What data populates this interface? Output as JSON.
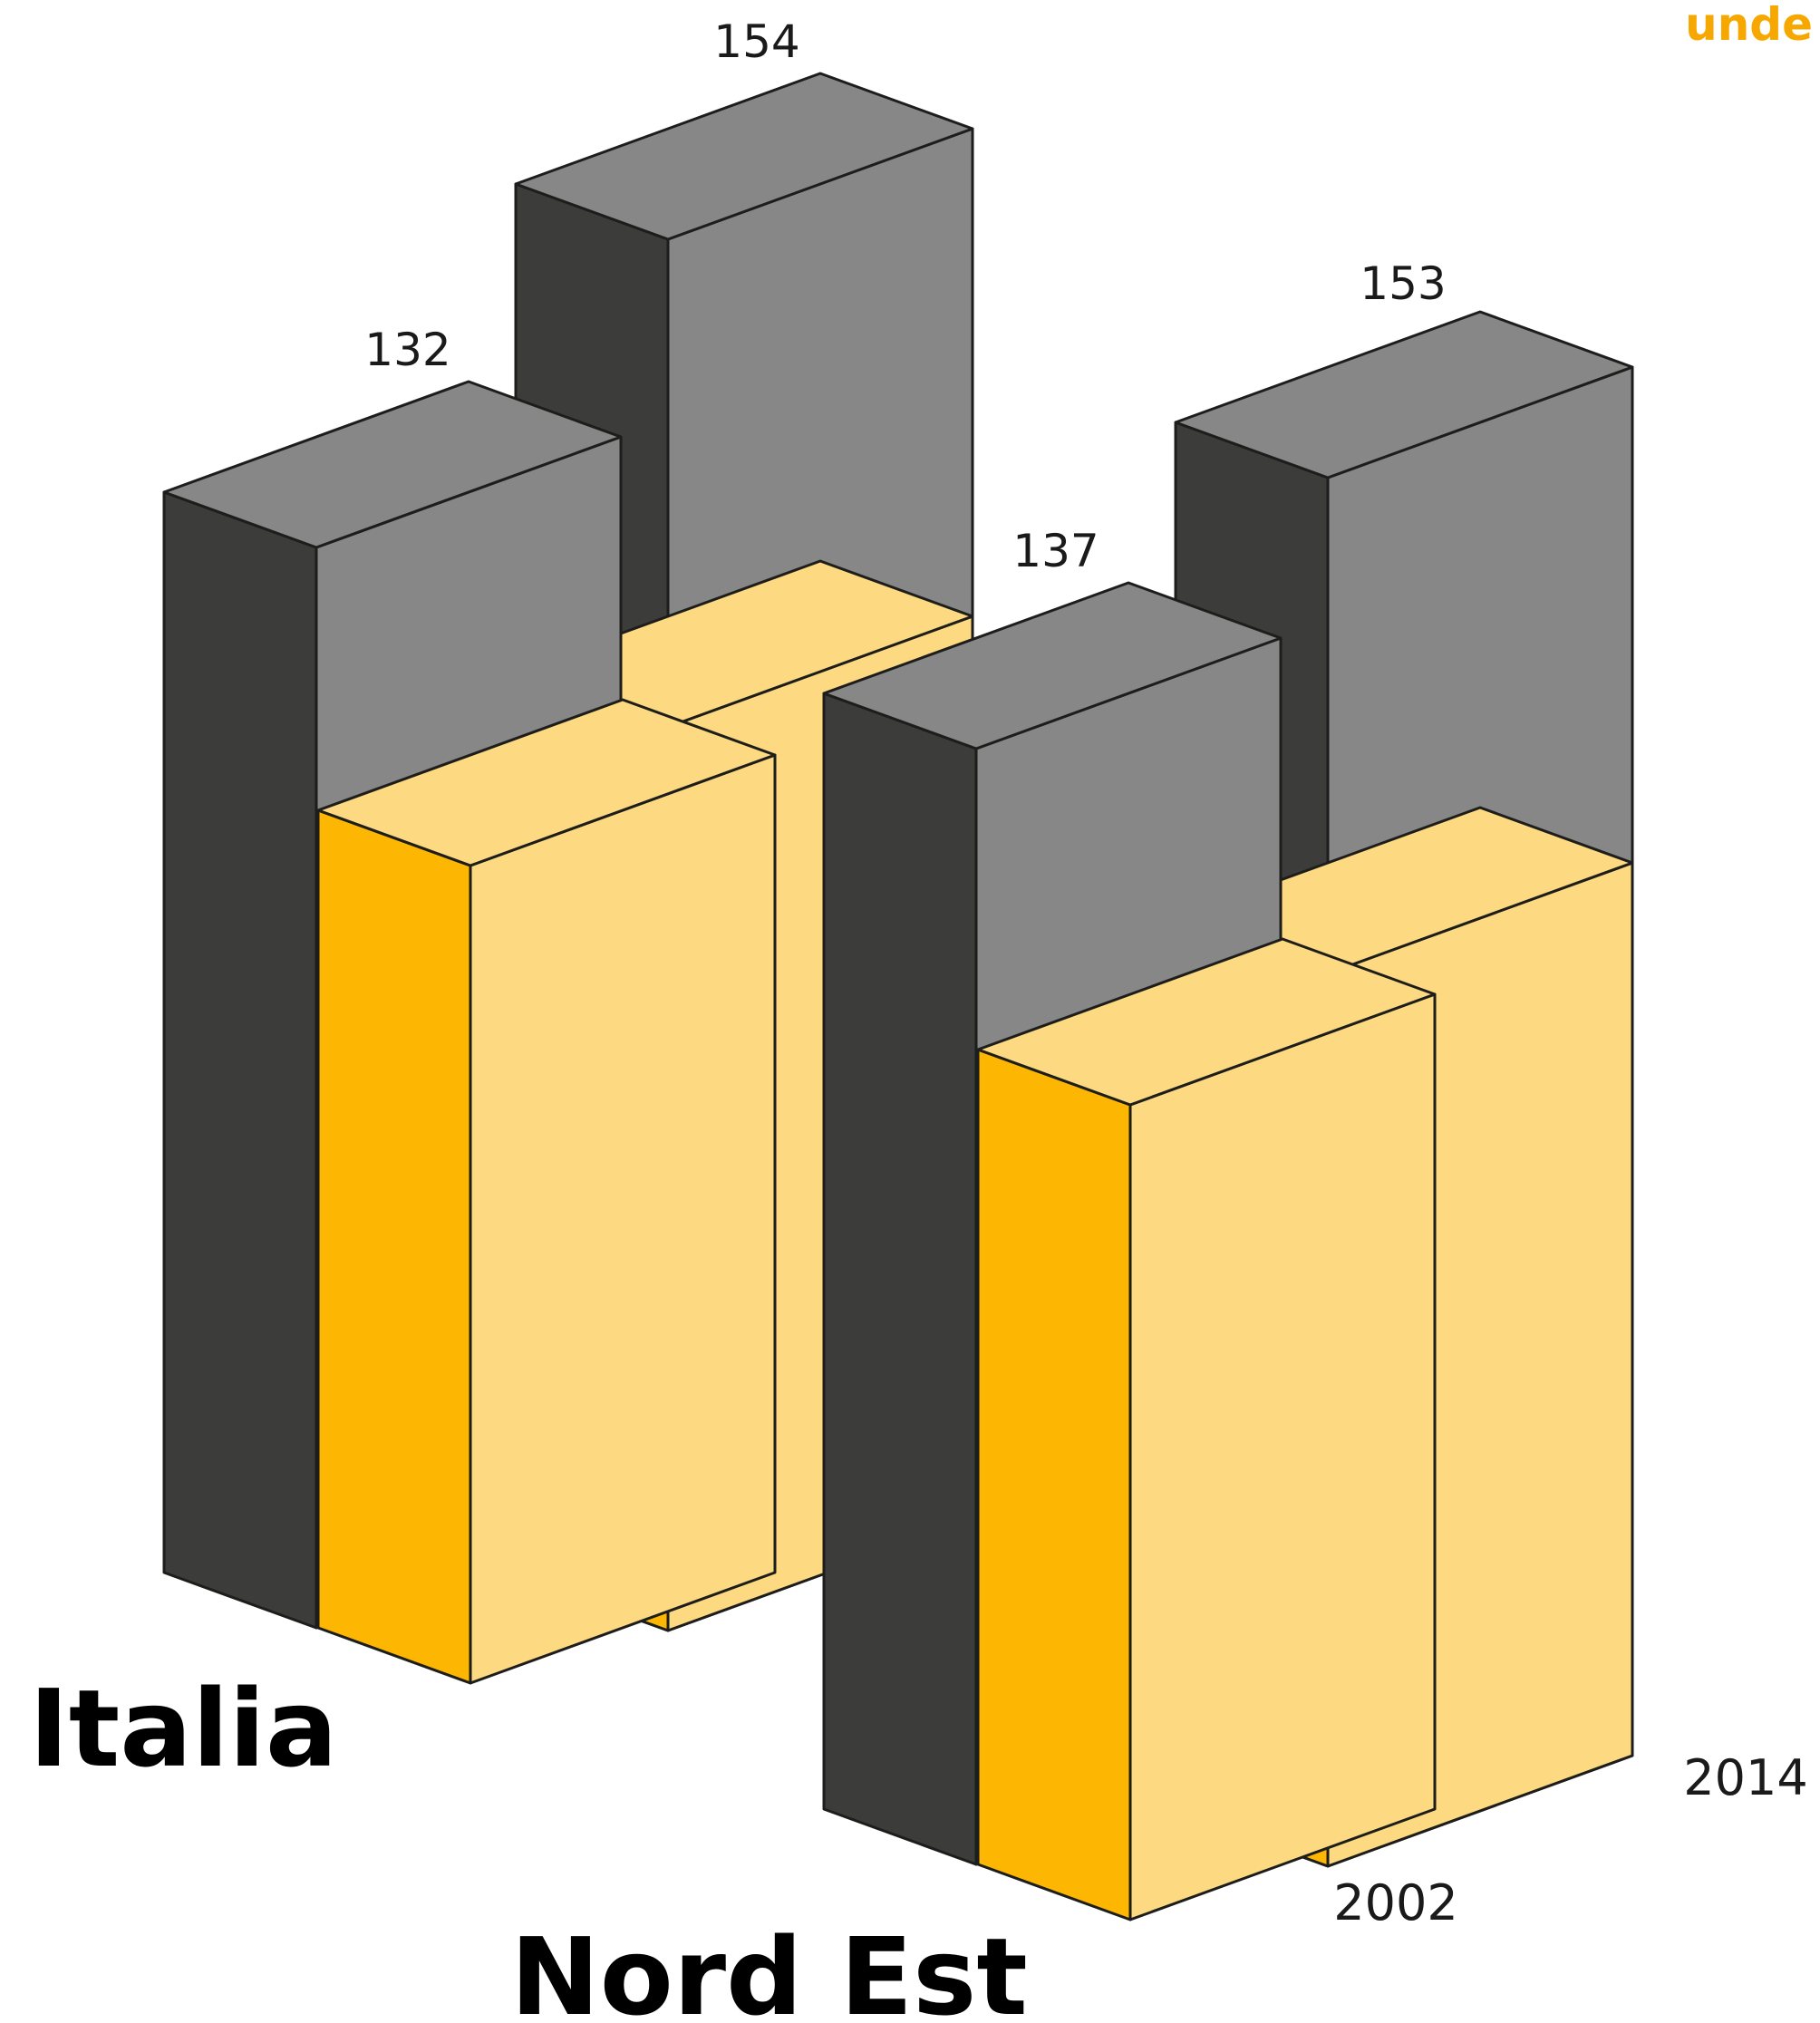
{
  "brand": {
    "text": "unde",
    "color": "#F7A800"
  },
  "colors": {
    "grey_front": "#878787",
    "grey_side": "#3C3C3B",
    "grey_top": "#878787",
    "yellow_front": "#FDDA82",
    "yellow_side": "#FDB703",
    "yellow_top": "#FDDA82",
    "outline": "#1D1D1B"
  },
  "chart_data": {
    "type": "bar",
    "categories": [
      "Italia",
      "Nord Est"
    ],
    "years": [
      "2002",
      "2014"
    ],
    "series_labels": {
      "Italia": [
        "132",
        "154"
      ],
      "Nord Est": [
        "137",
        "153"
      ]
    }
  }
}
